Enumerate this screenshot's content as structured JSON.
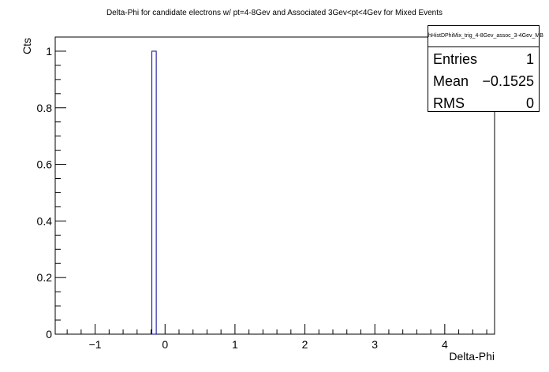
{
  "chart_data": {
    "type": "bar",
    "title": "Delta-Phi for candidate electrons w/ pt=4-8Gev and Associated 3Gev<pt<4Gev for Mixed Events",
    "xlabel": "Delta-Phi",
    "ylabel": "Cts",
    "xlim": [
      -1.5708,
      4.7124
    ],
    "ylim": [
      0,
      1.05
    ],
    "x_ticks": [
      -1,
      0,
      1,
      2,
      3,
      4
    ],
    "x_tick_labels": [
      "−1",
      "0",
      "1",
      "2",
      "3",
      "4"
    ],
    "y_ticks": [
      0,
      0.2,
      0.4,
      0.6,
      0.8,
      1
    ],
    "y_tick_labels": [
      "0",
      "0.2",
      "0.4",
      "0.6",
      "0.8",
      "1"
    ],
    "bins": [
      {
        "low": -0.1885,
        "high": -0.1257,
        "value": 1
      }
    ],
    "bar_color": "#000099"
  },
  "stats": {
    "name": "hHistDPhiMix_trig_4-8Gev_assoc_3-4Gev_MB",
    "rows": [
      {
        "label": "Entries",
        "value": "1"
      },
      {
        "label": "Mean",
        "value": "−0.1525"
      },
      {
        "label": "RMS",
        "value": "0"
      }
    ]
  }
}
